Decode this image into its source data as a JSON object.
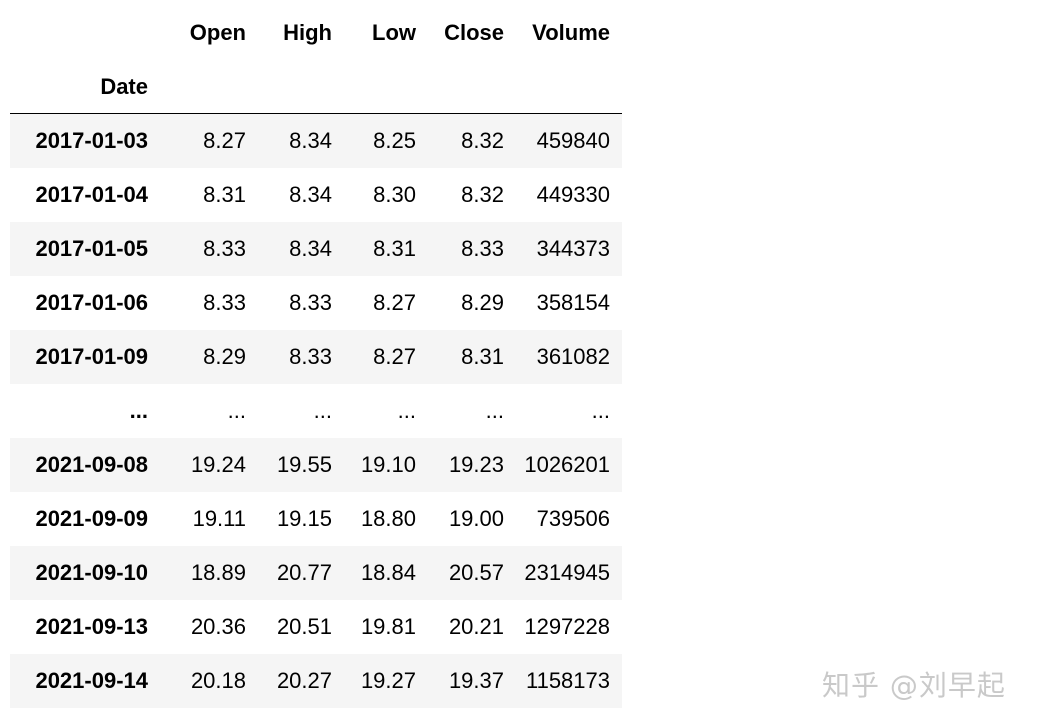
{
  "table": {
    "columns": [
      "Open",
      "High",
      "Low",
      "Close",
      "Volume"
    ],
    "index_name": "Date",
    "rows": [
      {
        "date": "2017-01-03",
        "open": "8.27",
        "high": "8.34",
        "low": "8.25",
        "close": "8.32",
        "volume": "459840"
      },
      {
        "date": "2017-01-04",
        "open": "8.31",
        "high": "8.34",
        "low": "8.30",
        "close": "8.32",
        "volume": "449330"
      },
      {
        "date": "2017-01-05",
        "open": "8.33",
        "high": "8.34",
        "low": "8.31",
        "close": "8.33",
        "volume": "344373"
      },
      {
        "date": "2017-01-06",
        "open": "8.33",
        "high": "8.33",
        "low": "8.27",
        "close": "8.29",
        "volume": "358154"
      },
      {
        "date": "2017-01-09",
        "open": "8.29",
        "high": "8.33",
        "low": "8.27",
        "close": "8.31",
        "volume": "361082"
      },
      {
        "date": "...",
        "open": "...",
        "high": "...",
        "low": "...",
        "close": "...",
        "volume": "..."
      },
      {
        "date": "2021-09-08",
        "open": "19.24",
        "high": "19.55",
        "low": "19.10",
        "close": "19.23",
        "volume": "1026201"
      },
      {
        "date": "2021-09-09",
        "open": "19.11",
        "high": "19.15",
        "low": "18.80",
        "close": "19.00",
        "volume": "739506"
      },
      {
        "date": "2021-09-10",
        "open": "18.89",
        "high": "20.77",
        "low": "18.84",
        "close": "20.57",
        "volume": "2314945"
      },
      {
        "date": "2021-09-13",
        "open": "20.36",
        "high": "20.51",
        "low": "19.81",
        "close": "20.21",
        "volume": "1297228"
      },
      {
        "date": "2021-09-14",
        "open": "20.18",
        "high": "20.27",
        "low": "19.27",
        "close": "19.37",
        "volume": "1158173"
      }
    ]
  },
  "watermark": "知乎 @刘早起"
}
